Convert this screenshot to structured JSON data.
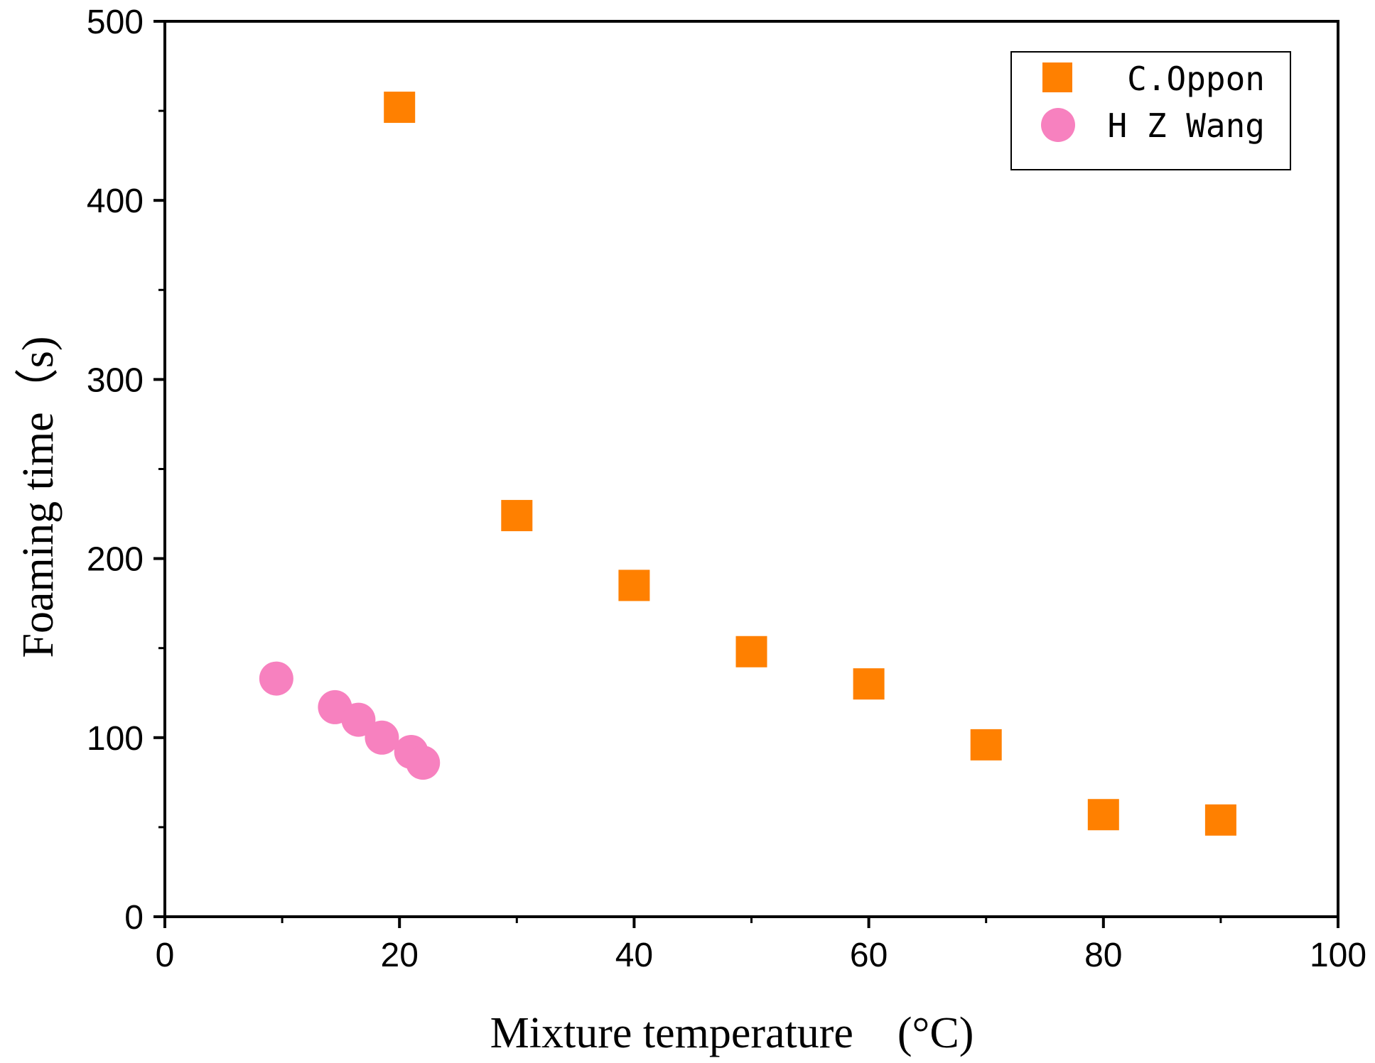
{
  "chart_data": {
    "type": "scatter",
    "title": "",
    "xlabel": "Mixture temperature　(°C)",
    "ylabel": "Foaming time（s)",
    "xlim": [
      0,
      100
    ],
    "ylim": [
      0,
      500
    ],
    "xticks": [
      0,
      20,
      40,
      60,
      80,
      100
    ],
    "yticks": [
      0,
      100,
      200,
      300,
      400,
      500
    ],
    "x_minor_step": 10,
    "y_minor_step": 50,
    "grid": false,
    "legend_position": "top-right",
    "series": [
      {
        "name": "C.Oppon",
        "marker": "square",
        "color": "#FF8000",
        "x": [
          20,
          30,
          40,
          50,
          60,
          70,
          80,
          90
        ],
        "y": [
          452,
          224,
          185,
          148,
          130,
          96,
          57,
          54
        ]
      },
      {
        "name": "H Z Wang",
        "marker": "circle",
        "color": "#F781BF",
        "x": [
          9.5,
          14.5,
          16.5,
          18.5,
          21,
          22
        ],
        "y": [
          133,
          117,
          110,
          100,
          92,
          86
        ]
      }
    ]
  }
}
